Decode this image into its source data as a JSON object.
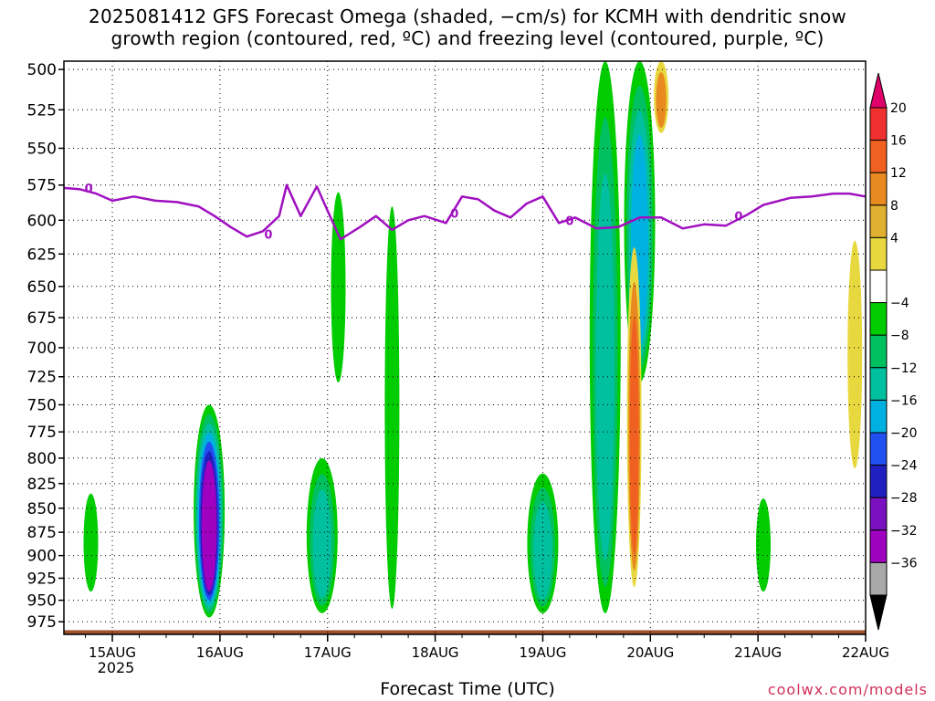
{
  "title": {
    "line1": "2025081412 GFS Forecast Omega (shaded, −cm/s) for KCMH with dendritic snow",
    "line2": "growth region (contoured, red, ºC) and freezing level (contoured, purple, ºC)"
  },
  "xlabel": "Forecast Time (UTC)",
  "credit": "coolwx.com/models",
  "chart_data": {
    "type": "heatmap",
    "title": "2025081412 GFS Forecast Omega (shaded, −cm/s) for KCMH with dendritic snow growth region (contoured, red, ºC) and freezing level (contoured, purple, ºC)",
    "xlabel": "Forecast Time (UTC)",
    "ylabel": "",
    "x_ticks": [
      "15AUG",
      "16AUG",
      "17AUG",
      "18AUG",
      "19AUG",
      "20AUG",
      "21AUG",
      "22AUG"
    ],
    "x_tick_sub": "2025",
    "x_range_days": [
      14.55,
      22.0
    ],
    "y_ticks": [
      500,
      525,
      550,
      575,
      600,
      625,
      650,
      675,
      700,
      725,
      750,
      775,
      800,
      825,
      850,
      875,
      900,
      925,
      950,
      975
    ],
    "y_range_hpa": [
      495,
      990
    ],
    "grid": true,
    "colorbar": {
      "labels": [
        "20",
        "16",
        "12",
        "8",
        "4",
        "−4",
        "−8",
        "−12",
        "−16",
        "−20",
        "−24",
        "−28",
        "−32",
        "−36"
      ],
      "colors": [
        "#e0006a",
        "#f03030",
        "#f06020",
        "#e88a20",
        "#e0b030",
        "#e8d840",
        "#ffffff",
        "#00cc00",
        "#00c060",
        "#00c0a0",
        "#00b0e0",
        "#2050f0",
        "#2020c0",
        "#7a10c0",
        "#a000c0",
        "#a8a8a8",
        "#000000"
      ]
    },
    "freezing_level": {
      "label": "0",
      "color": "#a010c0",
      "points": [
        [
          14.55,
          577
        ],
        [
          14.7,
          578
        ],
        [
          14.85,
          581
        ],
        [
          15.0,
          586
        ],
        [
          15.2,
          583
        ],
        [
          15.4,
          586
        ],
        [
          15.6,
          587
        ],
        [
          15.8,
          590
        ],
        [
          15.95,
          597
        ],
        [
          16.1,
          605
        ],
        [
          16.25,
          612
        ],
        [
          16.4,
          608
        ],
        [
          16.55,
          597
        ],
        [
          16.62,
          575
        ],
        [
          16.75,
          597
        ],
        [
          16.9,
          576
        ],
        [
          17.0,
          593
        ],
        [
          17.12,
          614
        ],
        [
          17.3,
          605
        ],
        [
          17.45,
          597
        ],
        [
          17.6,
          607
        ],
        [
          17.75,
          600
        ],
        [
          17.9,
          597
        ],
        [
          18.1,
          602
        ],
        [
          18.25,
          583
        ],
        [
          18.4,
          585
        ],
        [
          18.55,
          593
        ],
        [
          18.7,
          598
        ],
        [
          18.85,
          588
        ],
        [
          19.0,
          583
        ],
        [
          19.15,
          602
        ],
        [
          19.3,
          598
        ],
        [
          19.5,
          606
        ],
        [
          19.7,
          605
        ],
        [
          19.9,
          598
        ],
        [
          20.1,
          598
        ],
        [
          20.3,
          606
        ],
        [
          20.5,
          603
        ],
        [
          20.7,
          604
        ],
        [
          20.9,
          596
        ],
        [
          21.05,
          589
        ],
        [
          21.3,
          584
        ],
        [
          21.5,
          583
        ],
        [
          21.7,
          581
        ],
        [
          21.85,
          581
        ],
        [
          22.0,
          583
        ]
      ]
    },
    "omega_features": [
      {
        "day": 14.8,
        "p_top": 835,
        "p_bot": 940,
        "value": -6
      },
      {
        "day": 15.9,
        "p_top": 750,
        "p_bot": 970,
        "value": -30
      },
      {
        "day": 16.95,
        "p_top": 800,
        "p_bot": 965,
        "value": -14
      },
      {
        "day": 17.1,
        "p_top": 580,
        "p_bot": 730,
        "value": -6
      },
      {
        "day": 17.6,
        "p_top": 590,
        "p_bot": 960,
        "value": -6
      },
      {
        "day": 19.0,
        "p_top": 815,
        "p_bot": 965,
        "value": -15
      },
      {
        "day": 19.58,
        "p_top": 495,
        "p_bot": 965,
        "value": -14
      },
      {
        "day": 19.9,
        "p_top": 495,
        "p_bot": 730,
        "value": -16
      },
      {
        "day": 19.85,
        "p_top": 620,
        "p_bot": 935,
        "value": 12
      },
      {
        "day": 20.1,
        "p_top": 495,
        "p_bot": 540,
        "value": 10
      },
      {
        "day": 21.05,
        "p_top": 840,
        "p_bot": 940,
        "value": -6
      },
      {
        "day": 21.9,
        "p_top": 615,
        "p_bot": 810,
        "value": 5
      }
    ],
    "ground": {
      "color": "#a0522d",
      "p_top": 985
    }
  }
}
